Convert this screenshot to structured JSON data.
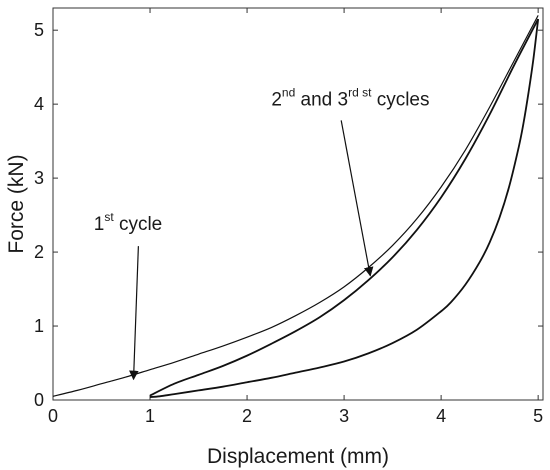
{
  "chart_data": {
    "type": "line",
    "title": "",
    "xlabel": "Displacement (mm)",
    "ylabel": "Force (kN)",
    "xlim": [
      0,
      5.05
    ],
    "ylim": [
      0,
      5.3
    ],
    "xticks": [
      0,
      1,
      2,
      3,
      4,
      5
    ],
    "yticks": [
      0,
      1,
      2,
      3,
      4,
      5
    ],
    "grid": false,
    "legend": "none",
    "line_color": "#111111",
    "series": [
      {
        "x": [
          0.0,
          0.25,
          0.5,
          0.75,
          1.0,
          1.25,
          1.5,
          1.75,
          2.0,
          2.25,
          2.5,
          2.75,
          3.0,
          3.25,
          3.5,
          3.75,
          4.0,
          4.25,
          4.5,
          4.75,
          5.0
        ],
        "y": [
          0.05,
          0.13,
          0.22,
          0.31,
          0.41,
          0.51,
          0.62,
          0.73,
          0.85,
          0.98,
          1.14,
          1.32,
          1.53,
          1.79,
          2.09,
          2.45,
          2.88,
          3.38,
          3.96,
          4.58,
          5.2
        ]
      },
      {
        "x": [
          1.0,
          1.25,
          1.5,
          1.75,
          2.0,
          2.25,
          2.5,
          2.75,
          3.0,
          3.25,
          3.5,
          3.75,
          4.0,
          4.25,
          4.5,
          4.75,
          5.0
        ],
        "y": [
          0.06,
          0.22,
          0.34,
          0.46,
          0.6,
          0.76,
          0.93,
          1.12,
          1.35,
          1.62,
          1.93,
          2.3,
          2.74,
          3.26,
          3.86,
          4.52,
          5.15
        ]
      },
      {
        "x": [
          5.0,
          4.95,
          4.9,
          4.85,
          4.8,
          4.7,
          4.6,
          4.5,
          4.4,
          4.25,
          4.1,
          4.0,
          3.75,
          3.5,
          3.25,
          3.0,
          2.75,
          2.5,
          2.25,
          2.0,
          1.75,
          1.5,
          1.25,
          1.1,
          1.0
        ],
        "y": [
          5.15,
          4.6,
          4.15,
          3.75,
          3.42,
          2.88,
          2.46,
          2.13,
          1.87,
          1.56,
          1.32,
          1.2,
          0.95,
          0.77,
          0.63,
          0.52,
          0.44,
          0.37,
          0.3,
          0.24,
          0.18,
          0.13,
          0.08,
          0.05,
          0.04
        ]
      }
    ],
    "annotations": [
      {
        "text": "1",
        "sup": "st",
        "tail": " cycle",
        "text_x": 0.42,
        "text_y": 2.3,
        "arrow_from": [
          0.88,
          2.08
        ],
        "arrow_to": [
          0.83,
          0.28
        ]
      },
      {
        "text": "2",
        "sup": "nd",
        "tail": " and 3",
        "sup2": "rd st",
        "tail2": " cycles",
        "text_x": 2.25,
        "text_y": 3.98,
        "arrow_from": [
          2.97,
          3.78
        ],
        "arrow_to": [
          3.27,
          1.68
        ]
      }
    ]
  }
}
